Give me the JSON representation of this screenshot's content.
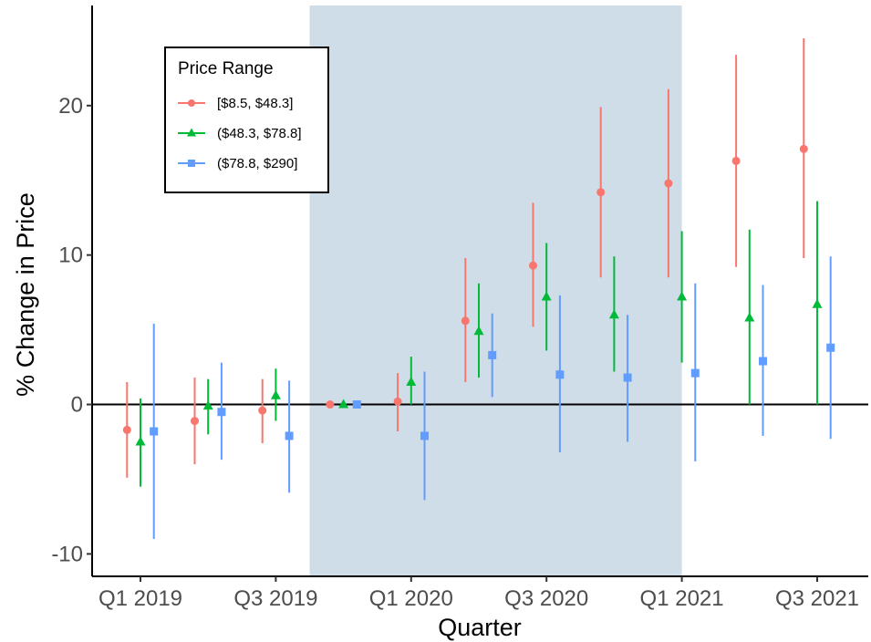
{
  "chart_data": {
    "type": "scatter",
    "title": "",
    "xlabel": "Quarter",
    "ylabel": "% Change in Price",
    "ylim": [
      -11.5,
      26.7
    ],
    "yticks": [
      -10,
      0,
      10,
      20
    ],
    "ytick_labels": [
      "-10",
      "0",
      "10",
      "20"
    ],
    "categories": [
      "Q1 2019",
      "Q2 2019",
      "Q3 2019",
      "Q4 2019",
      "Q1 2020",
      "Q2 2020",
      "Q3 2020",
      "Q4 2020",
      "Q1 2021",
      "Q2 2021",
      "Q3 2021"
    ],
    "xtick_labels": [
      "Q1 2019",
      "Q3 2019",
      "Q1 2020",
      "Q3 2020",
      "Q1 2021",
      "Q3 2021"
    ],
    "shaded_region": {
      "from": "Q4 2019",
      "to": "Q1 2021",
      "color": "#cfdde9"
    },
    "reference_line": 0,
    "grid": false,
    "legend": {
      "title": "Price Range",
      "placement": "top-left"
    },
    "series": [
      {
        "name": "[$8.5, $48.3]",
        "color": "#f8766d",
        "marker": "circle",
        "estimate": [
          -1.7,
          -1.1,
          -0.4,
          0.0,
          0.2,
          5.6,
          9.3,
          14.2,
          14.8,
          16.3,
          17.1
        ],
        "lower": [
          -4.9,
          -4.0,
          -2.6,
          0.0,
          -1.8,
          1.5,
          5.2,
          8.5,
          8.5,
          9.2,
          9.8
        ],
        "upper": [
          1.5,
          1.8,
          1.7,
          0.0,
          2.1,
          9.8,
          13.5,
          19.9,
          21.1,
          23.4,
          24.5
        ]
      },
      {
        "name": "($48.3, $78.8]",
        "color": "#00ba38",
        "marker": "triangle",
        "estimate": [
          -2.5,
          -0.1,
          0.6,
          0.0,
          1.5,
          4.9,
          7.2,
          6.0,
          7.2,
          5.8,
          6.7
        ],
        "lower": [
          -5.5,
          -2.0,
          -1.1,
          0.0,
          0.0,
          1.8,
          3.6,
          2.2,
          2.8,
          0.0,
          0.0
        ],
        "upper": [
          0.4,
          1.7,
          2.4,
          0.0,
          3.2,
          8.1,
          10.8,
          9.9,
          11.6,
          11.7,
          13.6
        ]
      },
      {
        "name": "($78.8, $290]",
        "color": "#619cff",
        "marker": "square",
        "estimate": [
          -1.8,
          -0.5,
          -2.1,
          0.0,
          -2.1,
          3.3,
          2.0,
          1.8,
          2.1,
          2.9,
          3.8
        ],
        "lower": [
          -9.0,
          -3.7,
          -5.9,
          0.0,
          -6.4,
          0.5,
          -3.2,
          -2.5,
          -3.8,
          -2.1,
          -2.3
        ],
        "upper": [
          5.4,
          2.8,
          1.6,
          0.0,
          2.2,
          6.1,
          7.3,
          6.0,
          8.1,
          8.0,
          9.9
        ]
      }
    ]
  }
}
